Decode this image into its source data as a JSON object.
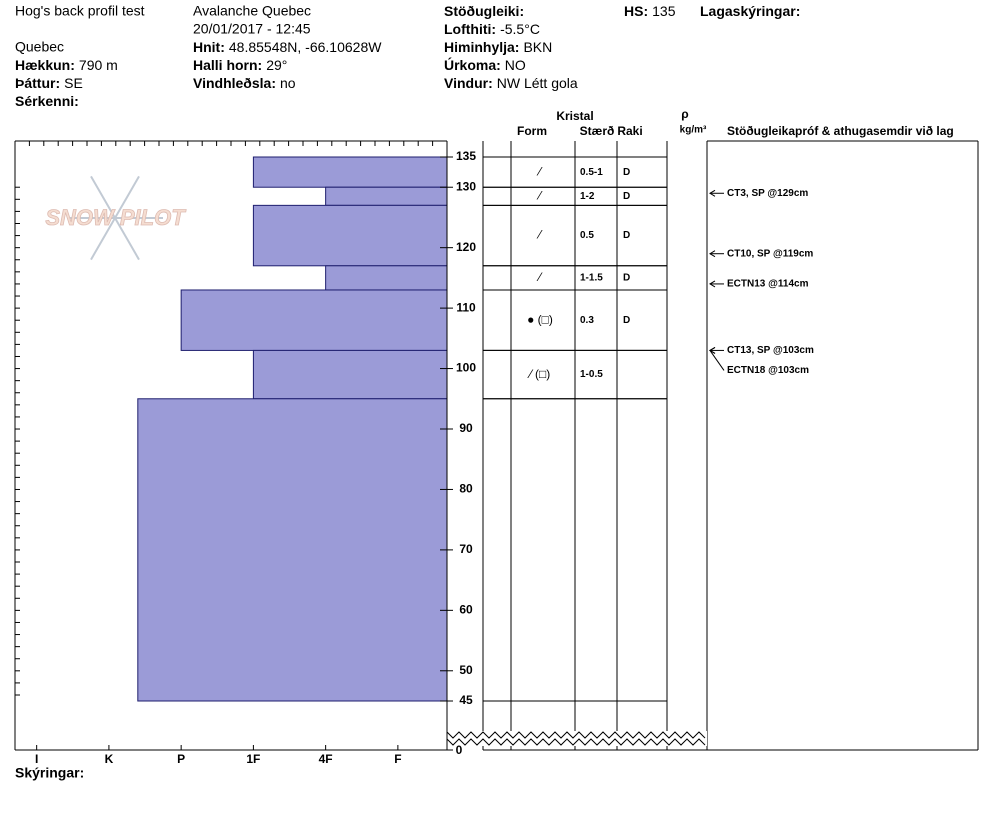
{
  "header": {
    "title": "Hog's back profil test",
    "location": "Quebec",
    "observer": "Avalanche Quebec",
    "datetime": "20/01/2017 - 12:45",
    "fields": [
      {
        "label": "Hækkun:",
        "value": "790 m"
      },
      {
        "label": "Þáttur:",
        "value": "SE"
      },
      {
        "label": "Sérkenni:"
      },
      {
        "label": "Hnit:",
        "value": "48.85548N, -66.10628W"
      },
      {
        "label": "Halli horn:",
        "value": "29°"
      },
      {
        "label": "Vindhleðsla:",
        "value": "no"
      },
      {
        "label": "Stöðugleiki:"
      },
      {
        "label": "Lofthiti:",
        "value": "-5.5°C"
      },
      {
        "label": "Himinhylja:",
        "value": "BKN"
      },
      {
        "label": "Úrkoma:",
        "value": "NO"
      },
      {
        "label": "Vindur:",
        "value": "NW Létt gola"
      },
      {
        "label": "HS:",
        "value": 135
      },
      {
        "label": "Lagaskýringar:"
      }
    ]
  },
  "logo": "SNOW PILOT",
  "columns": {
    "crystal": "Kristal",
    "form": "Form",
    "size": "Stærð",
    "moisture": "Raki",
    "density": "ρ",
    "density_unit": "kg/m³",
    "tests": "Stöðugleikapróf & athugasemdir við lag"
  },
  "footer": "Skýringar:",
  "chart_data": {
    "type": "snowprofile",
    "ylim": [
      45,
      135
    ],
    "yticks": [
      45,
      50,
      60,
      70,
      80,
      90,
      100,
      110,
      120,
      130,
      135
    ],
    "break_tick": 0,
    "xlim": [
      0.32,
      6.3
    ],
    "xticks": [
      {
        "value": 6,
        "label": "I"
      },
      {
        "value": 5,
        "label": "K"
      },
      {
        "value": 4,
        "label": "P"
      },
      {
        "value": 3,
        "label": "1F"
      },
      {
        "value": 2,
        "label": "4F"
      },
      {
        "value": 1,
        "label": "F"
      }
    ],
    "color": "#9b9bd7",
    "layers": [
      {
        "top": 135,
        "bottom": 130,
        "hardness": 3,
        "form": "⁄",
        "size": "0.5-1",
        "moisture": "D"
      },
      {
        "top": 130,
        "bottom": 127,
        "hardness": 2,
        "form": "⁄",
        "size": "1-2",
        "moisture": "D"
      },
      {
        "top": 127,
        "bottom": 117,
        "hardness": 3,
        "form": "⁄",
        "size": "0.5",
        "moisture": "D"
      },
      {
        "top": 117,
        "bottom": 113,
        "hardness": 2,
        "form": "⁄",
        "size": "1-1.5",
        "moisture": "D"
      },
      {
        "top": 113,
        "bottom": 103,
        "hardness": 4,
        "form": "● (□)",
        "size": "0.3",
        "moisture": "D"
      },
      {
        "top": 103,
        "bottom": 95,
        "hardness": 3,
        "form": "⁄ (□)",
        "size": "1-0.5"
      },
      {
        "top": 95,
        "bottom": 45,
        "hardness": 4.6
      }
    ],
    "tests": [
      {
        "depth": 129,
        "label": "CT3, SP @129cm"
      },
      {
        "depth": 119,
        "label": "CT10, SP @119cm"
      },
      {
        "depth": 114,
        "label": "ECTN13 @114cm"
      },
      {
        "depth": 103,
        "label": "CT13, SP @103cm"
      },
      {
        "depth": 103,
        "label": "ECTN18 @103cm"
      }
    ]
  }
}
